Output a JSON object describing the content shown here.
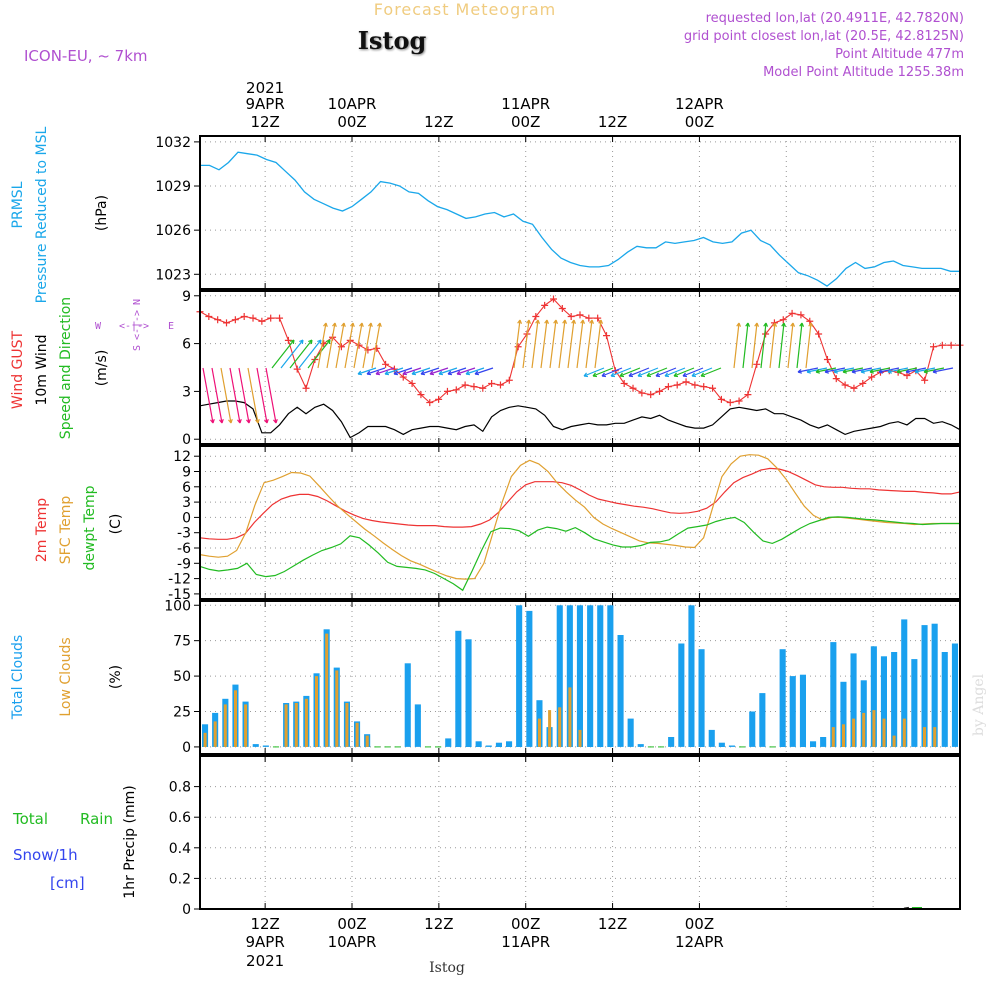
{
  "header": {
    "subtitle": "Forecast Meteogram",
    "station": "Istog",
    "model": "ICON-EU, ~ 7km",
    "requested": "requested lon,lat (20.4911E, 42.7820N)",
    "grid_point": "grid point closest lon,lat (20.5E, 42.8125N)",
    "point_alt": "Point Altitude 477m",
    "model_alt": "Model Point Altitude 1255.38m"
  },
  "time_axis": {
    "top_labels": [
      {
        "line1": "2021",
        "line2": "9APR",
        "line3": "12Z"
      },
      {
        "line1": "",
        "line2": "10APR",
        "line3": "00Z"
      },
      {
        "line1": "",
        "line2": "",
        "line3": "12Z"
      },
      {
        "line1": "",
        "line2": "11APR",
        "line3": "00Z"
      },
      {
        "line1": "",
        "line2": "",
        "line3": "12Z"
      },
      {
        "line1": "",
        "line2": "12APR",
        "line3": "00Z"
      }
    ],
    "bottom_labels": [
      {
        "line1": "12Z",
        "line2": "9APR",
        "line3": "2021"
      },
      {
        "line1": "00Z",
        "line2": "10APR",
        "line3": ""
      },
      {
        "line1": "12Z",
        "line2": "",
        "line3": ""
      },
      {
        "line1": "00Z",
        "line2": "11APR",
        "line3": ""
      },
      {
        "line1": "12Z",
        "line2": "",
        "line3": ""
      },
      {
        "line1": "00Z",
        "line2": "12APR",
        "line3": ""
      }
    ],
    "footer": "Istog"
  },
  "watermark": "by Angel",
  "colors": {
    "pressure": "#1aa7ea",
    "gust": "#ee3333",
    "wind": "#000000",
    "green": "#22bb22",
    "temp": "#ee3333",
    "sfc": "#e0a030",
    "dew": "#22bb22",
    "total_clouds": "#1aa0ee",
    "low_clouds": "#e0a030",
    "purple": "#b050d0",
    "snow": "#3344ee"
  },
  "chart_data": [
    {
      "type": "line",
      "panel": "pressure",
      "labels": {
        "l1": "PRMSL",
        "l2": "Pressure Reduced to MSL",
        "unit": "(hPa)"
      },
      "ylim": [
        1022,
        1032.4
      ],
      "yticks": [
        1032,
        1029,
        1026,
        1023
      ],
      "series": [
        {
          "name": "PRMSL",
          "values": [
            1030.4,
            1030.4,
            1030.1,
            1030.6,
            1031.3,
            1031.2,
            1031.1,
            1030.8,
            1030.6,
            1030.0,
            1029.4,
            1028.6,
            1028.1,
            1027.8,
            1027.5,
            1027.3,
            1027.6,
            1028.1,
            1028.6,
            1029.3,
            1029.2,
            1029.0,
            1028.6,
            1028.5,
            1028.0,
            1027.6,
            1027.4,
            1027.1,
            1026.8,
            1026.9,
            1027.1,
            1027.2,
            1026.9,
            1027.1,
            1026.6,
            1026.4,
            1025.5,
            1024.7,
            1024.1,
            1023.8,
            1023.6,
            1023.5,
            1023.5,
            1023.6,
            1024.0,
            1024.5,
            1024.9,
            1024.8,
            1024.8,
            1025.2,
            1025.1,
            1025.2,
            1025.3,
            1025.5,
            1025.2,
            1025.1,
            1025.2,
            1025.8,
            1026.0,
            1025.3,
            1025.0,
            1024.3,
            1023.7,
            1023.1,
            1022.9,
            1022.6,
            1022.2,
            1022.7,
            1023.4,
            1023.8,
            1023.4,
            1023.5,
            1023.8,
            1023.9,
            1023.6,
            1023.5,
            1023.4,
            1023.4,
            1023.4,
            1023.2,
            1023.2
          ]
        }
      ]
    },
    {
      "type": "line",
      "panel": "wind",
      "labels": {
        "l1": "Wind GUST",
        "l2": "10m Wind",
        "l3": "Speed and Direction",
        "unit": "(m/s)"
      },
      "ylim": [
        -0.3,
        9.3
      ],
      "yticks": [
        9,
        6,
        3,
        0
      ],
      "compass": {
        "n": "N",
        "s": "S",
        "w": "W",
        "e": "E",
        "mid": "<-|->"
      },
      "series": [
        {
          "name": "Wind GUST",
          "values": [
            8.0,
            7.7,
            7.5,
            7.3,
            7.5,
            7.7,
            7.6,
            7.4,
            7.6,
            7.6,
            6.2,
            4.4,
            3.2,
            5.0,
            6.0,
            6.4,
            5.8,
            6.2,
            5.9,
            5.6,
            5.7,
            4.7,
            4.4,
            3.9,
            3.5,
            2.8,
            2.3,
            2.5,
            3.0,
            3.1,
            3.4,
            3.3,
            3.2,
            3.5,
            3.4,
            3.7,
            5.8,
            6.6,
            7.7,
            8.4,
            8.8,
            8.2,
            7.7,
            7.8,
            7.6,
            7.6,
            6.5,
            4.3,
            3.5,
            3.2,
            2.9,
            2.8,
            3.0,
            3.3,
            3.4,
            3.6,
            3.4,
            3.3,
            3.2,
            2.5,
            2.3,
            2.4,
            2.8,
            4.7,
            6.6,
            7.3,
            7.5,
            7.9,
            7.8,
            7.4,
            6.6,
            5.0,
            3.8,
            3.4,
            3.2,
            3.5,
            3.9,
            4.2,
            4.3,
            4.2,
            4.0,
            4.3,
            3.7,
            5.8,
            5.9,
            5.9,
            5.9
          ]
        },
        {
          "name": "10m Wind",
          "values": [
            2.1,
            2.2,
            2.3,
            2.4,
            2.4,
            2.3,
            1.9,
            0.4,
            0.4,
            0.9,
            1.6,
            2.0,
            1.6,
            2.0,
            2.2,
            1.8,
            1.1,
            0.1,
            0.4,
            0.8,
            0.8,
            0.8,
            0.6,
            0.3,
            0.6,
            0.7,
            0.8,
            0.8,
            0.7,
            0.6,
            0.8,
            0.9,
            0.5,
            1.4,
            1.8,
            2.0,
            2.1,
            2.0,
            1.9,
            1.5,
            0.8,
            0.6,
            0.8,
            0.9,
            1.0,
            0.9,
            0.9,
            1.0,
            1.0,
            1.2,
            1.4,
            1.3,
            1.5,
            1.2,
            1.0,
            0.8,
            0.7,
            0.7,
            0.9,
            1.4,
            1.9,
            2.0,
            1.9,
            1.8,
            1.9,
            1.6,
            1.6,
            1.4,
            1.2,
            0.9,
            0.7,
            0.9,
            0.6,
            0.3,
            0.5,
            0.6,
            0.7,
            0.8,
            1.0,
            1.1,
            0.9,
            1.3,
            1.3,
            1.0,
            1.1,
            0.9,
            0.6
          ]
        }
      ]
    },
    {
      "type": "line",
      "panel": "temperature",
      "labels": {
        "l1": "2m Temp",
        "l2": "SFC Temp",
        "l3": "dewpt Temp",
        "unit": "(C)"
      },
      "ylim": [
        -16,
        14
      ],
      "yticks": [
        12,
        9,
        6,
        3,
        0,
        -3,
        -6,
        -9,
        -12,
        -15
      ],
      "series": [
        {
          "name": "2m Temp",
          "values": [
            -4.0,
            -4.2,
            -4.3,
            -4.3,
            -4.0,
            -3.2,
            -1.0,
            0.8,
            2.5,
            3.6,
            4.2,
            4.5,
            4.5,
            4.1,
            3.3,
            2.3,
            1.3,
            0.5,
            -0.2,
            -0.6,
            -0.9,
            -1.1,
            -1.3,
            -1.5,
            -1.6,
            -1.6,
            -1.6,
            -1.8,
            -1.9,
            -1.9,
            -1.8,
            -1.3,
            -0.5,
            1.0,
            3.0,
            5.0,
            6.4,
            7.0,
            7.0,
            7.0,
            6.8,
            6.3,
            5.4,
            4.4,
            3.6,
            3.2,
            2.8,
            2.5,
            2.2,
            2.0,
            1.7,
            1.3,
            0.9,
            0.8,
            0.9,
            1.2,
            1.8,
            3.0,
            5.0,
            6.8,
            7.8,
            8.5,
            9.3,
            9.6,
            9.5,
            9.0,
            8.2,
            7.3,
            6.4,
            6.0,
            5.9,
            5.9,
            5.7,
            5.6,
            5.6,
            5.4,
            5.3,
            5.2,
            5.1,
            5.1,
            4.9,
            4.8,
            4.6,
            4.6,
            5.0
          ]
        },
        {
          "name": "SFC Temp",
          "values": [
            -7.3,
            -7.6,
            -7.8,
            -7.6,
            -6.5,
            -3.0,
            2.4,
            6.8,
            7.3,
            8.0,
            8.8,
            8.7,
            8.1,
            6.2,
            4.2,
            2.3,
            0.7,
            -0.8,
            -2.3,
            -3.6,
            -5.0,
            -6.3,
            -7.5,
            -8.5,
            -9.2,
            -10.0,
            -10.8,
            -11.5,
            -12.0,
            -12.1,
            -12.0,
            -9.0,
            -3.0,
            3.0,
            8.0,
            10.2,
            11.2,
            10.5,
            9.0,
            6.8,
            5.0,
            3.4,
            2.0,
            0.0,
            -1.3,
            -2.2,
            -3.0,
            -3.8,
            -4.6,
            -5.0,
            -5.1,
            -5.3,
            -5.5,
            -5.8,
            -5.9,
            -4.0,
            2.0,
            8.0,
            10.5,
            12.0,
            12.3,
            12.2,
            11.5,
            9.7,
            7.5,
            4.8,
            2.2,
            0.4,
            -0.5,
            0.0,
            0.0,
            -0.2,
            -0.4,
            -0.6,
            -0.8,
            -1.0,
            -1.1,
            -1.2,
            -1.4,
            -1.3,
            -1.2,
            -1.2,
            -1.2,
            -1.2
          ]
        },
        {
          "name": "dewpt Temp",
          "values": [
            -9.6,
            -10.2,
            -10.5,
            -10.3,
            -10.0,
            -9.0,
            -11.2,
            -11.6,
            -11.4,
            -10.6,
            -9.5,
            -8.4,
            -7.4,
            -6.5,
            -5.9,
            -5.2,
            -3.6,
            -4.0,
            -5.4,
            -7.0,
            -8.8,
            -9.6,
            -9.8,
            -10.0,
            -10.3,
            -11.0,
            -12.0,
            -13.0,
            -14.3,
            -10.5,
            -6.5,
            -2.8,
            -2.1,
            -2.2,
            -2.6,
            -3.7,
            -2.5,
            -1.9,
            -2.2,
            -2.7,
            -2.0,
            -3.0,
            -4.2,
            -4.8,
            -5.4,
            -5.8,
            -5.8,
            -5.5,
            -4.9,
            -4.8,
            -4.4,
            -3.2,
            -2.1,
            -1.8,
            -1.5,
            -0.8,
            -0.3,
            0.0,
            -1.0,
            -2.9,
            -4.6,
            -5.1,
            -4.3,
            -3.2,
            -2.1,
            -1.2,
            -0.6,
            0.0,
            0.1,
            0.0,
            -0.2,
            -0.4,
            -0.5,
            -0.7,
            -0.9,
            -1.1,
            -1.2,
            -1.4,
            -1.3,
            -1.2,
            -1.2,
            -1.2
          ]
        }
      ]
    },
    {
      "type": "bar",
      "panel": "clouds",
      "labels": {
        "l1": "Total Clouds",
        "l2": "Low Clouds",
        "unit": "(%)"
      },
      "ylim": [
        -5,
        103
      ],
      "yticks": [
        100,
        75,
        50,
        25,
        0
      ],
      "series": [
        {
          "name": "Total Clouds",
          "values": [
            16,
            24,
            34,
            44,
            32,
            2,
            1,
            0,
            31,
            32,
            36,
            52,
            83,
            56,
            32,
            18,
            9,
            0,
            0,
            0,
            59,
            30,
            0,
            0,
            6,
            82,
            76,
            4,
            1,
            3,
            4,
            100,
            96,
            33,
            14,
            100,
            100,
            100,
            100,
            100,
            100,
            79,
            20,
            2,
            0,
            0,
            7,
            73,
            100,
            69,
            12,
            3,
            1,
            0,
            25,
            38,
            0,
            69,
            50,
            51,
            4,
            7,
            74,
            46,
            66,
            47,
            71,
            64,
            67,
            90,
            62,
            86,
            87,
            67,
            73
          ]
        },
        {
          "name": "Low Clouds",
          "values": [
            10,
            18,
            30,
            40,
            30,
            0,
            0,
            0,
            30,
            31,
            34,
            50,
            80,
            54,
            31,
            17,
            8,
            0,
            0,
            0,
            0,
            0,
            0,
            0,
            0,
            0,
            0,
            0,
            0,
            0,
            0,
            0,
            0,
            20,
            26,
            28,
            42,
            12,
            0,
            0,
            0,
            0,
            0,
            0,
            0,
            0,
            0,
            0,
            0,
            0,
            0,
            0,
            0,
            0,
            0,
            0,
            0,
            0,
            0,
            0,
            0,
            0,
            14,
            16,
            20,
            24,
            26,
            20,
            8,
            20,
            0,
            14,
            14,
            0,
            0
          ]
        }
      ]
    },
    {
      "type": "line",
      "panel": "precip",
      "labels": {
        "total": "Total",
        "rain": "Rain",
        "snow": "Snow/1h",
        "cm": "[cm]",
        "unit": "1hr Precip (mm)"
      },
      "ylim": [
        0,
        1.0
      ],
      "yticks": [
        0.8,
        0.6,
        0.4,
        0.2,
        0
      ],
      "ytick_labels": [
        "0.8",
        "0.6",
        "0.4",
        "0.2",
        "0"
      ],
      "series": [
        {
          "name": "Total",
          "values": [
            0,
            0,
            0,
            0,
            0,
            0,
            0,
            0,
            0,
            0,
            0,
            0,
            0,
            0,
            0,
            0,
            0,
            0,
            0,
            0,
            0,
            0,
            0,
            0,
            0,
            0,
            0,
            0,
            0,
            0,
            0,
            0,
            0,
            0,
            0,
            0,
            0,
            0,
            0,
            0,
            0,
            0,
            0,
            0,
            0,
            0,
            0,
            0,
            0,
            0,
            0,
            0,
            0,
            0,
            0,
            0,
            0,
            0,
            0,
            0,
            0,
            0,
            0,
            0,
            0,
            0,
            0,
            0,
            0,
            0.01,
            0,
            0,
            0,
            0,
            0
          ]
        }
      ]
    }
  ]
}
